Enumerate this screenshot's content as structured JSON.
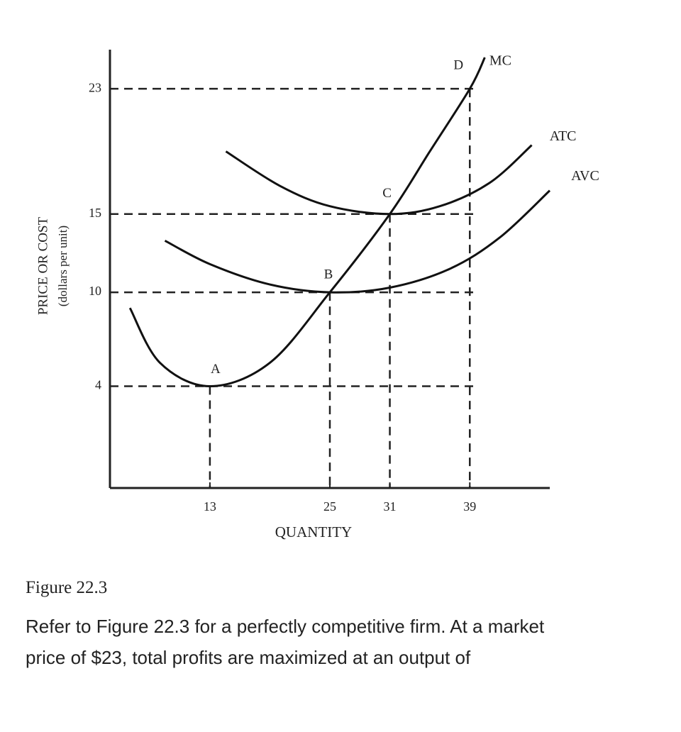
{
  "chart_data": {
    "type": "line",
    "x_label": "QUANTITY",
    "y_label": "PRICE OR COST",
    "y_sublabel": "(dollars per unit)",
    "xlim": [
      3,
      47
    ],
    "ylim": [
      -2.5,
      25.5
    ],
    "xticks": [
      13,
      25,
      31,
      39
    ],
    "yticks": [
      4,
      10,
      15,
      23
    ],
    "series": [
      {
        "name": "MC",
        "color": "#111111",
        "x": [
          5,
          8,
          13,
          19,
          25,
          31,
          35,
          39,
          40.5
        ],
        "values": [
          9,
          5.5,
          4,
          5.5,
          10,
          15,
          19,
          23,
          25
        ]
      },
      {
        "name": "ATC",
        "color": "#111111",
        "x": [
          14.6,
          20,
          25,
          31,
          36,
          41,
          45.2
        ],
        "values": [
          19,
          16.8,
          15.5,
          15,
          15.5,
          17,
          19.4
        ]
      },
      {
        "name": "AVC",
        "color": "#111111",
        "x": [
          8.5,
          13,
          19,
          25,
          31,
          37,
          42,
          47
        ],
        "values": [
          13.3,
          11.8,
          10.5,
          10,
          10.3,
          11.5,
          13.5,
          16.5
        ]
      }
    ],
    "points": [
      {
        "label": "A",
        "x": 13,
        "y": 4
      },
      {
        "label": "B",
        "x": 25,
        "y": 10
      },
      {
        "label": "C",
        "x": 31,
        "y": 15
      },
      {
        "label": "D",
        "x": 39,
        "y": 23
      }
    ]
  },
  "caption": {
    "figure": "Figure 22.3",
    "question_lines": [
      "Refer to Figure 22.3 for a perfectly competitive firm. At a market",
      "price of $23, total profits are maximized at an output of"
    ]
  }
}
